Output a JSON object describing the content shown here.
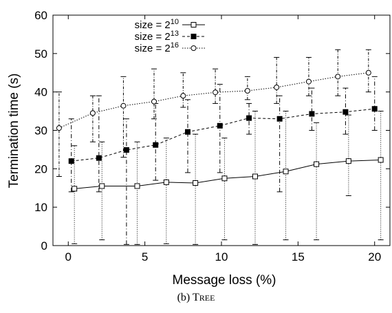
{
  "chart_data": {
    "type": "line",
    "xlabel": "Message loss (%)",
    "ylabel": "Termination time (s)",
    "xlim": [
      -1,
      21
    ],
    "ylim": [
      0,
      60
    ],
    "xticks": [
      0,
      5,
      10,
      15,
      20
    ],
    "yticks": [
      0,
      10,
      20,
      30,
      40,
      50,
      60
    ],
    "grid": false,
    "legend_position": "top-left",
    "series": [
      {
        "name_base": "size = 2",
        "name_exp": "10",
        "marker": "open-square",
        "line": "solid",
        "x": [
          0.4,
          2.2,
          4.5,
          6.4,
          8.3,
          10.2,
          12.2,
          14.2,
          16.2,
          18.3,
          20.4
        ],
        "y": [
          14.8,
          15.5,
          15.5,
          16.5,
          16.3,
          17.5,
          18.0,
          19.3,
          21.2,
          22.0,
          22.3
        ],
        "err_low": [
          0.5,
          1.5,
          0.3,
          0.5,
          0.3,
          1.5,
          0.3,
          1.5,
          1.5,
          13.0,
          1.5
        ],
        "err_high": [
          26.0,
          27.0,
          27.0,
          28.0,
          29.0,
          28.0,
          35.0,
          35.0,
          32.0,
          34.0,
          35.0
        ]
      },
      {
        "name_base": "size = 2",
        "name_exp": "13",
        "marker": "filled-square",
        "line": "dashed",
        "x": [
          0.2,
          2.0,
          3.8,
          5.7,
          7.8,
          9.9,
          11.8,
          13.8,
          15.9,
          18.1,
          20.0
        ],
        "y": [
          22.0,
          22.8,
          24.9,
          26.2,
          29.6,
          31.2,
          33.2,
          33.0,
          34.3,
          34.8,
          35.6
        ],
        "err_low": [
          14.0,
          14.0,
          0.3,
          17.0,
          19.0,
          19.0,
          29.0,
          14.0,
          30.0,
          29.0,
          30.0
        ],
        "err_high": [
          33.0,
          39.0,
          33.0,
          37.0,
          38.0,
          42.0,
          37.0,
          39.0,
          41.0,
          41.0,
          44.0
        ]
      },
      {
        "name_base": "size = 2",
        "name_exp": "16",
        "marker": "open-circle",
        "line": "dotted",
        "x": [
          -0.6,
          1.6,
          3.6,
          5.6,
          7.5,
          9.6,
          11.7,
          13.6,
          15.7,
          17.6,
          19.6
        ],
        "y": [
          30.6,
          34.5,
          36.4,
          37.5,
          39.0,
          39.9,
          40.3,
          41.2,
          42.7,
          44.0,
          45.0
        ],
        "err_low": [
          18.0,
          27.0,
          23.0,
          33.0,
          36.0,
          37.0,
          38.0,
          37.0,
          39.0,
          39.0,
          40.0
        ],
        "err_high": [
          40.0,
          39.0,
          44.0,
          46.0,
          45.0,
          46.0,
          44.0,
          49.0,
          49.0,
          51.0,
          51.0
        ]
      }
    ]
  },
  "caption": {
    "prefix": "(b) T",
    "smallcaps": "REE"
  }
}
